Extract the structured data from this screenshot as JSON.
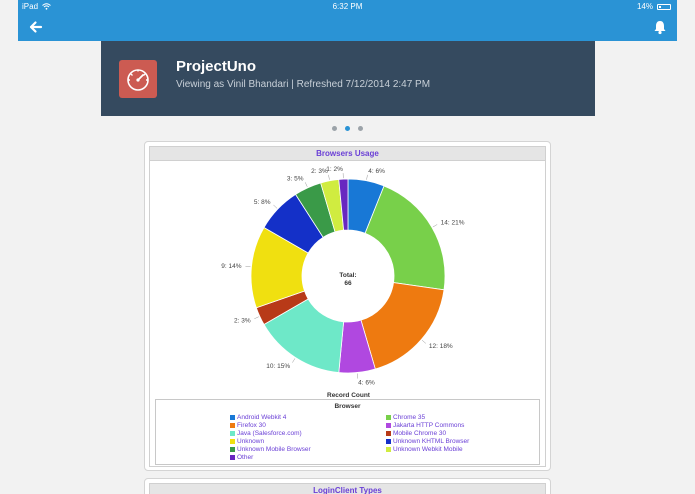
{
  "status_bar": {
    "carrier": "iPad",
    "time": "6:32 PM",
    "battery": "14%",
    "wifi_icon": "wifi-icon",
    "battery_icon": "battery-icon"
  },
  "nav": {
    "back_icon": "arrow-left-icon",
    "notifications_icon": "bell-icon"
  },
  "header": {
    "title": "ProjectUno",
    "subtitle": "Viewing as Vinil Bhandari | Refreshed 7/12/2014 2:47 PM",
    "icon": "dashboard-gauge-icon",
    "icon_color": "#cc5b52"
  },
  "pager": {
    "count": 3,
    "active": 1
  },
  "chart_data": {
    "type": "pie",
    "title": "Browsers Usage",
    "center_label": "Total:",
    "center_value": "66",
    "measure_label": "Record Count",
    "legend_title": "Browser",
    "slices": [
      {
        "name": "Android Webkit 4",
        "value": 4,
        "label": "4: 6%",
        "color": "#1878d6"
      },
      {
        "name": "Chrome 35",
        "value": 14,
        "label": "14: 21%",
        "color": "#78d04a"
      },
      {
        "name": "Firefox 30",
        "value": 12,
        "label": "12: 18%",
        "color": "#ee7a10"
      },
      {
        "name": "Jakarta HTTP Commons",
        "value": 4,
        "label": "4: 6%",
        "color": "#b048e0"
      },
      {
        "name": "Java (Salesforce.com)",
        "value": 10,
        "label": "10: 15%",
        "color": "#6ee8c8"
      },
      {
        "name": "Mobile Chrome 30",
        "value": 2,
        "label": "2: 3%",
        "color": "#b83a18"
      },
      {
        "name": "Unknown",
        "value": 9,
        "label": "9: 14%",
        "color": "#f0e010"
      },
      {
        "name": "Unknown KHTML Browser",
        "value": 5,
        "label": "5: 8%",
        "color": "#1430c8"
      },
      {
        "name": "Unknown Mobile Browser",
        "value": 3,
        "label": "3: 5%",
        "color": "#3a9a48"
      },
      {
        "name": "Unknown Webkit Mobile",
        "value": 2,
        "label": "2: 3%",
        "color": "#d0ec40"
      },
      {
        "name": "Other",
        "value": 1,
        "label": "1: 2%",
        "color": "#6828c0"
      }
    ]
  },
  "next_card": {
    "title": "LoginClient Types"
  }
}
